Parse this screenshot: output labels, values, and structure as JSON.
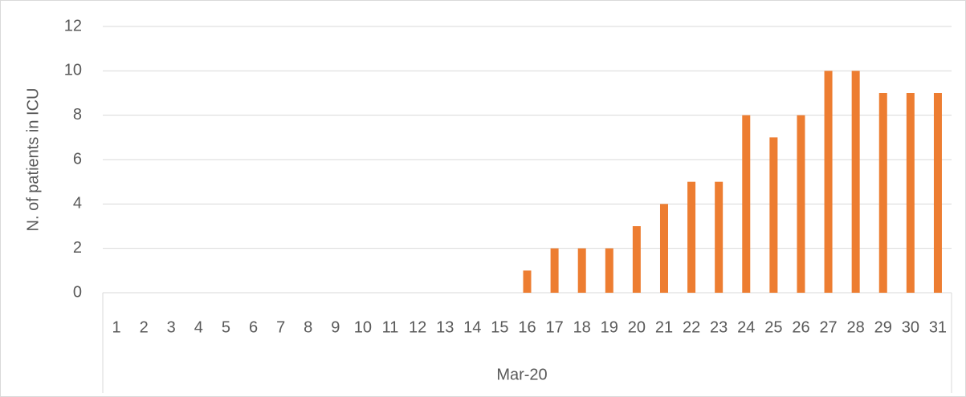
{
  "chart_data": {
    "type": "bar",
    "y_label": "N. of patients in ICU",
    "category_group": "Mar-20",
    "categories": [
      "1",
      "2",
      "3",
      "4",
      "5",
      "6",
      "7",
      "8",
      "9",
      "10",
      "11",
      "12",
      "13",
      "14",
      "15",
      "16",
      "17",
      "18",
      "19",
      "20",
      "21",
      "22",
      "23",
      "24",
      "25",
      "26",
      "27",
      "28",
      "29",
      "30",
      "31"
    ],
    "values": [
      0,
      0,
      0,
      0,
      0,
      0,
      0,
      0,
      0,
      0,
      0,
      0,
      0,
      0,
      0,
      1,
      2,
      2,
      2,
      3,
      4,
      5,
      5,
      8,
      7,
      8,
      10,
      10,
      9,
      9,
      9
    ],
    "color": "#ed7d31",
    "ylim": [
      0,
      12
    ],
    "yticks": [
      0,
      2,
      4,
      6,
      8,
      10,
      12
    ],
    "grid": true
  }
}
